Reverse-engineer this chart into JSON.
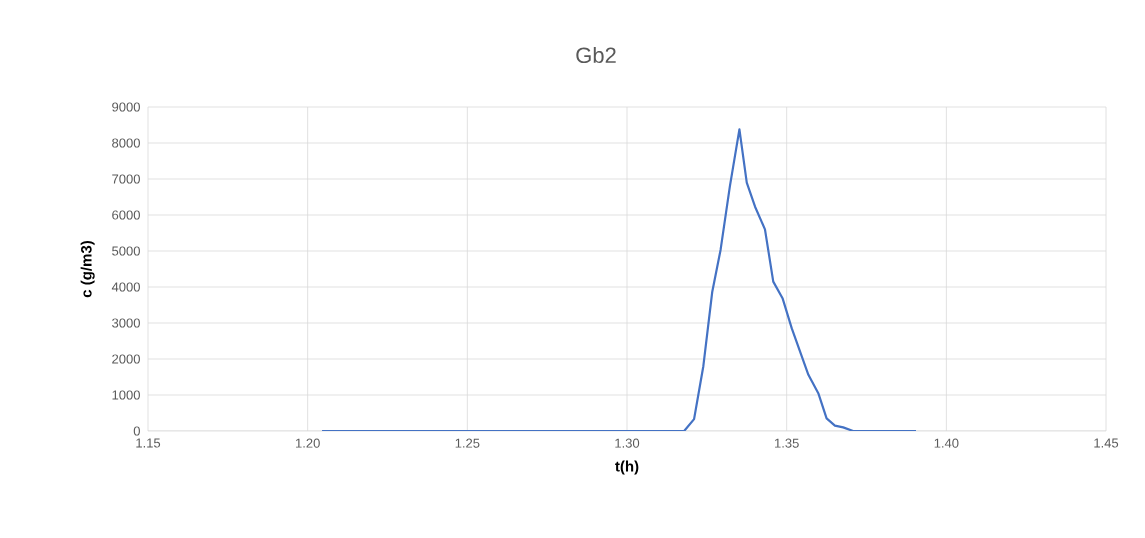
{
  "chart_data": {
    "type": "line",
    "title": "Gb2",
    "xlabel": "t(h)",
    "ylabel": "c (g/m3)",
    "series": [
      {
        "color": "#4472c4",
        "x": [
          1.2045,
          1.3179,
          1.321,
          1.3239,
          1.3267,
          1.3293,
          1.3322,
          1.3352,
          1.3375,
          1.3401,
          1.3432,
          1.3458,
          1.3487,
          1.3516,
          1.3568,
          1.3599,
          1.3625,
          1.3651,
          1.3677,
          1.3708,
          1.3905
        ],
        "values": [
          0,
          0,
          330,
          1800,
          3870,
          5030,
          6790,
          8380,
          6900,
          6230,
          5600,
          4150,
          3690,
          2850,
          1560,
          1050,
          350,
          150,
          100,
          0,
          0
        ]
      }
    ],
    "xlim": [
      1.15,
      1.45
    ],
    "xticks": [
      {
        "value": 1.15,
        "label": "1.15"
      },
      {
        "value": 1.2,
        "label": "1.20"
      },
      {
        "value": 1.25,
        "label": "1.25"
      },
      {
        "value": 1.3,
        "label": "1.30"
      },
      {
        "value": 1.35,
        "label": "1.35"
      },
      {
        "value": 1.4,
        "label": "1.40"
      },
      {
        "value": 1.45,
        "label": "1.45"
      }
    ],
    "ylim": [
      0,
      9000
    ],
    "yticks": [
      0,
      1000,
      2000,
      3000,
      4000,
      5000,
      6000,
      7000,
      8000,
      9000
    ],
    "grid": true,
    "marker": "none",
    "line_style": "solid"
  }
}
